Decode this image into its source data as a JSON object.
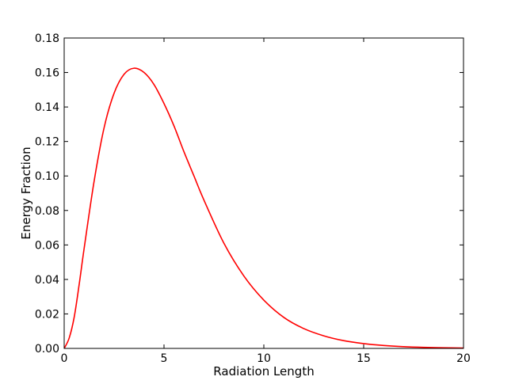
{
  "chart_data": {
    "type": "line",
    "title": "",
    "xlabel": "Radiation Length",
    "ylabel": "Energy Fraction",
    "xlim": [
      0,
      20
    ],
    "ylim": [
      0,
      0.18
    ],
    "xticks": [
      "0",
      "5",
      "10",
      "15",
      "20"
    ],
    "yticks": [
      "0.00",
      "0.02",
      "0.04",
      "0.06",
      "0.08",
      "0.10",
      "0.12",
      "0.14",
      "0.16",
      "0.18"
    ],
    "grid": false,
    "series": [
      {
        "color": "#ff0000",
        "x": [
          0,
          0.25,
          0.5,
          0.75,
          1.0,
          1.5,
          2.0,
          2.5,
          3.0,
          3.5,
          4.0,
          4.5,
          5.0,
          5.5,
          6.0,
          6.5,
          7.0,
          8.0,
          9.0,
          10.0,
          11.0,
          12.0,
          13.0,
          14.0,
          15.0,
          16.0,
          17.0,
          18.0,
          19.0,
          20.0
        ],
        "y": [
          0.0,
          0.006,
          0.018,
          0.037,
          0.058,
          0.097,
          0.128,
          0.148,
          0.159,
          0.1625,
          0.16,
          0.153,
          0.142,
          0.129,
          0.114,
          0.1,
          0.086,
          0.061,
          0.042,
          0.028,
          0.018,
          0.0115,
          0.0073,
          0.0045,
          0.0028,
          0.0017,
          0.001,
          0.0006,
          0.0004,
          0.0002
        ]
      }
    ]
  }
}
